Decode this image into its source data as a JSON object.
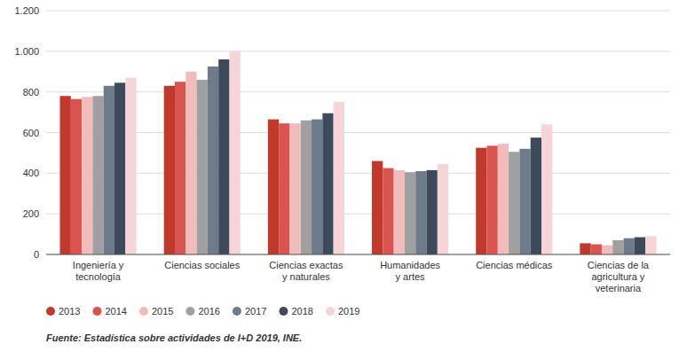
{
  "chart_data": {
    "type": "bar",
    "categories": [
      "Ingeniería y\ntecnología",
      "Ciencias sociales",
      "Ciencias exactas\ny naturales",
      "Humanidades\ny artes",
      "Ciencias médicas",
      "Ciencias de la\nagricultura y\nveterinaria"
    ],
    "series": [
      {
        "name": "2013",
        "color": "#c0392b",
        "values": [
          780,
          830,
          665,
          460,
          525,
          55
        ]
      },
      {
        "name": "2014",
        "color": "#d9534f",
        "values": [
          765,
          850,
          645,
          425,
          535,
          50
        ]
      },
      {
        "name": "2015",
        "color": "#f2bcbc",
        "values": [
          775,
          900,
          645,
          415,
          545,
          45
        ]
      },
      {
        "name": "2016",
        "color": "#a0a0a0",
        "values": [
          780,
          860,
          660,
          405,
          505,
          70
        ]
      },
      {
        "name": "2017",
        "color": "#6e7b8b",
        "values": [
          830,
          925,
          665,
          410,
          520,
          80
        ]
      },
      {
        "name": "2018",
        "color": "#3d4a5c",
        "values": [
          845,
          960,
          695,
          415,
          575,
          85
        ]
      },
      {
        "name": "2019",
        "color": "#f5d5d5",
        "values": [
          870,
          1000,
          750,
          445,
          640,
          90
        ]
      }
    ],
    "ylim": [
      0,
      1200
    ],
    "yticks": [
      0,
      200,
      400,
      600,
      800,
      {
        "value": 1000,
        "label": "1.000"
      },
      {
        "value": 1200,
        "label": "1.200"
      }
    ],
    "grid": true,
    "legend": "bottom-left",
    "annotations": [
      "Fuente: Estadística sobre actividades de I+D 2019, INE."
    ]
  }
}
